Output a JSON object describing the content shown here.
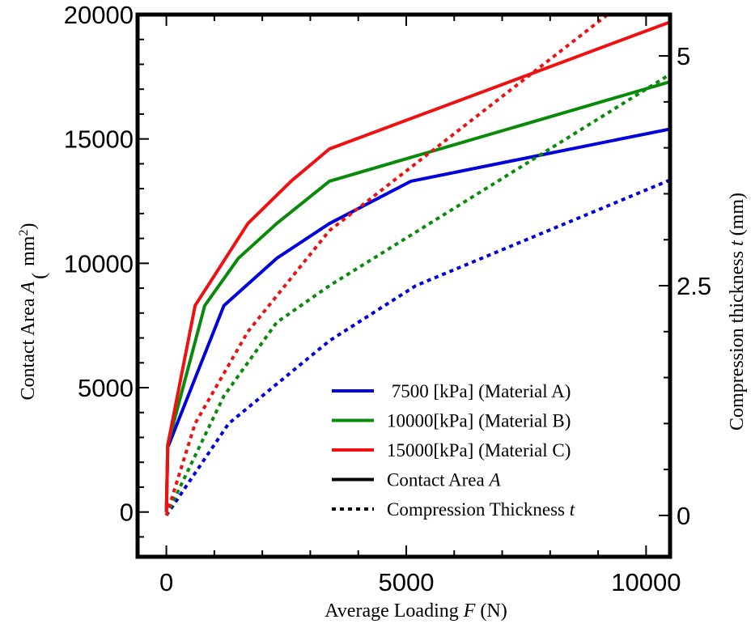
{
  "chart_data": {
    "type": "line",
    "x_axis": {
      "label_prefix": "Average Loading ",
      "label_var": "F",
      "label_unit": " (N)",
      "range": [
        -600,
        10500
      ],
      "ticks": [
        0,
        5000,
        10000
      ],
      "tick_labels": [
        "0",
        "5000",
        "10000"
      ]
    },
    "y_left_axis": {
      "label_prefix": "Contact Area ",
      "label_var": "A",
      "label_unit_open": "(",
      "label_unit": "mm",
      "label_unit_sup": "2",
      "label_unit_close": ")",
      "range": [
        -1800,
        20000
      ],
      "ticks": [
        0,
        5000,
        10000,
        15000,
        20000
      ],
      "tick_labels": [
        "0",
        "5000",
        "10000",
        "15000",
        "20000"
      ]
    },
    "y_right_axis": {
      "label_prefix": "Compression thickness ",
      "label_var": "t",
      "label_unit": " (mm)",
      "range": [
        -0.45,
        5.45
      ],
      "ticks": [
        0,
        2.5,
        5
      ],
      "tick_labels": [
        "0",
        "2.5",
        "5"
      ]
    },
    "series": [
      {
        "name": "7500 [kPa] (Material A)",
        "color": "#0000dd",
        "axis": "left",
        "style": "solid",
        "x": [
          0,
          30,
          1200,
          2300,
          3400,
          5100,
          10500
        ],
        "y": [
          0,
          2600,
          8300,
          10200,
          11600,
          13300,
          15400
        ]
      },
      {
        "name": "10000[kPa] (Material B)",
        "color": "#0a8a0a",
        "axis": "left",
        "style": "solid",
        "x": [
          0,
          30,
          800,
          1500,
          2300,
          3400,
          10500
        ],
        "y": [
          0,
          2700,
          8300,
          10200,
          11600,
          13300,
          17300
        ]
      },
      {
        "name": "15000[kPa] (Material C)",
        "color": "#ee1111",
        "axis": "left",
        "style": "solid",
        "x": [
          0,
          30,
          600,
          1700,
          2600,
          3400,
          10500
        ],
        "y": [
          0,
          2700,
          8300,
          11600,
          13300,
          14600,
          19700
        ]
      },
      {
        "name": "7500 [kPa] (Material A)",
        "color": "#0000dd",
        "axis": "right",
        "style": "dotted",
        "x": [
          0,
          1300,
          3400,
          5200,
          10500
        ],
        "y": [
          0,
          1.0,
          1.9,
          2.5,
          3.65
        ]
      },
      {
        "name": "10000[kPa] (Material B)",
        "color": "#0a8a0a",
        "axis": "right",
        "style": "dotted",
        "x": [
          0,
          1200,
          2300,
          3400,
          10500
        ],
        "y": [
          0,
          1.3,
          2.1,
          2.5,
          4.8
        ]
      },
      {
        "name": "15000[kPa] (Material C)",
        "color": "#ee1111",
        "axis": "right",
        "style": "dotted",
        "x": [
          0,
          600,
          1700,
          3400,
          9200
        ],
        "y": [
          0,
          1.0,
          2.0,
          3.1,
          5.45
        ]
      }
    ],
    "legend": {
      "placement": "bottom-right",
      "entries": [
        {
          "label": " 7500 [kPa] (Material A)",
          "color": "#0000dd",
          "style": "solid"
        },
        {
          "label": "10000[kPa] (Material B)",
          "color": "#0a8a0a",
          "style": "solid"
        },
        {
          "label": "15000[kPa] (Material C)",
          "color": "#ee1111",
          "style": "solid"
        },
        {
          "label": "Contact Area ",
          "label_var": "A",
          "color": "#000000",
          "style": "solid"
        },
        {
          "label": "Compression Thickness ",
          "label_var": "t",
          "color": "#000000",
          "style": "dotted"
        }
      ]
    },
    "grid": false
  }
}
